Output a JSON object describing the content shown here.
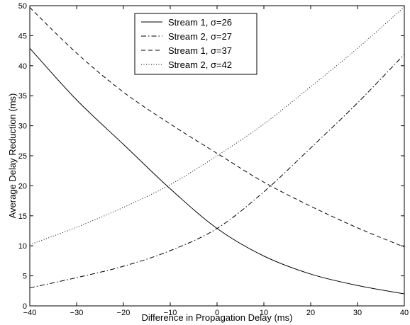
{
  "chart_data": {
    "type": "line",
    "title": "",
    "xlabel": "Difference in Propagation Delay (ms)",
    "ylabel": "Average Delay Reduction (ms)",
    "xlim": [
      -40,
      40
    ],
    "ylim": [
      0,
      50
    ],
    "xticks": [
      -40,
      -30,
      -20,
      -10,
      0,
      10,
      20,
      30,
      40
    ],
    "xtick_labels": [
      "−40",
      "−30",
      "−20",
      "−10",
      "0",
      "10",
      "20",
      "30",
      "40"
    ],
    "yticks": [
      0,
      5,
      10,
      15,
      20,
      25,
      30,
      35,
      40,
      45,
      50
    ],
    "ytick_labels": [
      "0",
      "5",
      "10",
      "15",
      "20",
      "25",
      "30",
      "35",
      "40",
      "45",
      "50"
    ],
    "grid": false,
    "legend_position": "top-center",
    "x": [
      -40,
      -30,
      -20,
      -10,
      0,
      10,
      20,
      30,
      40
    ],
    "series": [
      {
        "name": "Stream 1, σ=26",
        "style": "solid",
        "values": [
          42.9,
          34.3,
          26.9,
          19.5,
          12.9,
          8.3,
          5.3,
          3.4,
          2.0
        ]
      },
      {
        "name": "Stream 2, σ=27",
        "style": "dashdot",
        "values": [
          3.0,
          4.7,
          6.6,
          9.2,
          12.9,
          19.0,
          26.3,
          33.8,
          41.9
        ]
      },
      {
        "name": "Stream 1, σ=37",
        "style": "dashed",
        "values": [
          49.7,
          42.1,
          35.6,
          30.3,
          25.4,
          20.6,
          16.6,
          13.0,
          9.8
        ]
      },
      {
        "name": "Stream 2, σ=42",
        "style": "dotted",
        "values": [
          10.2,
          13.1,
          16.4,
          20.2,
          25.0,
          30.3,
          36.5,
          42.9,
          49.8
        ]
      }
    ]
  }
}
